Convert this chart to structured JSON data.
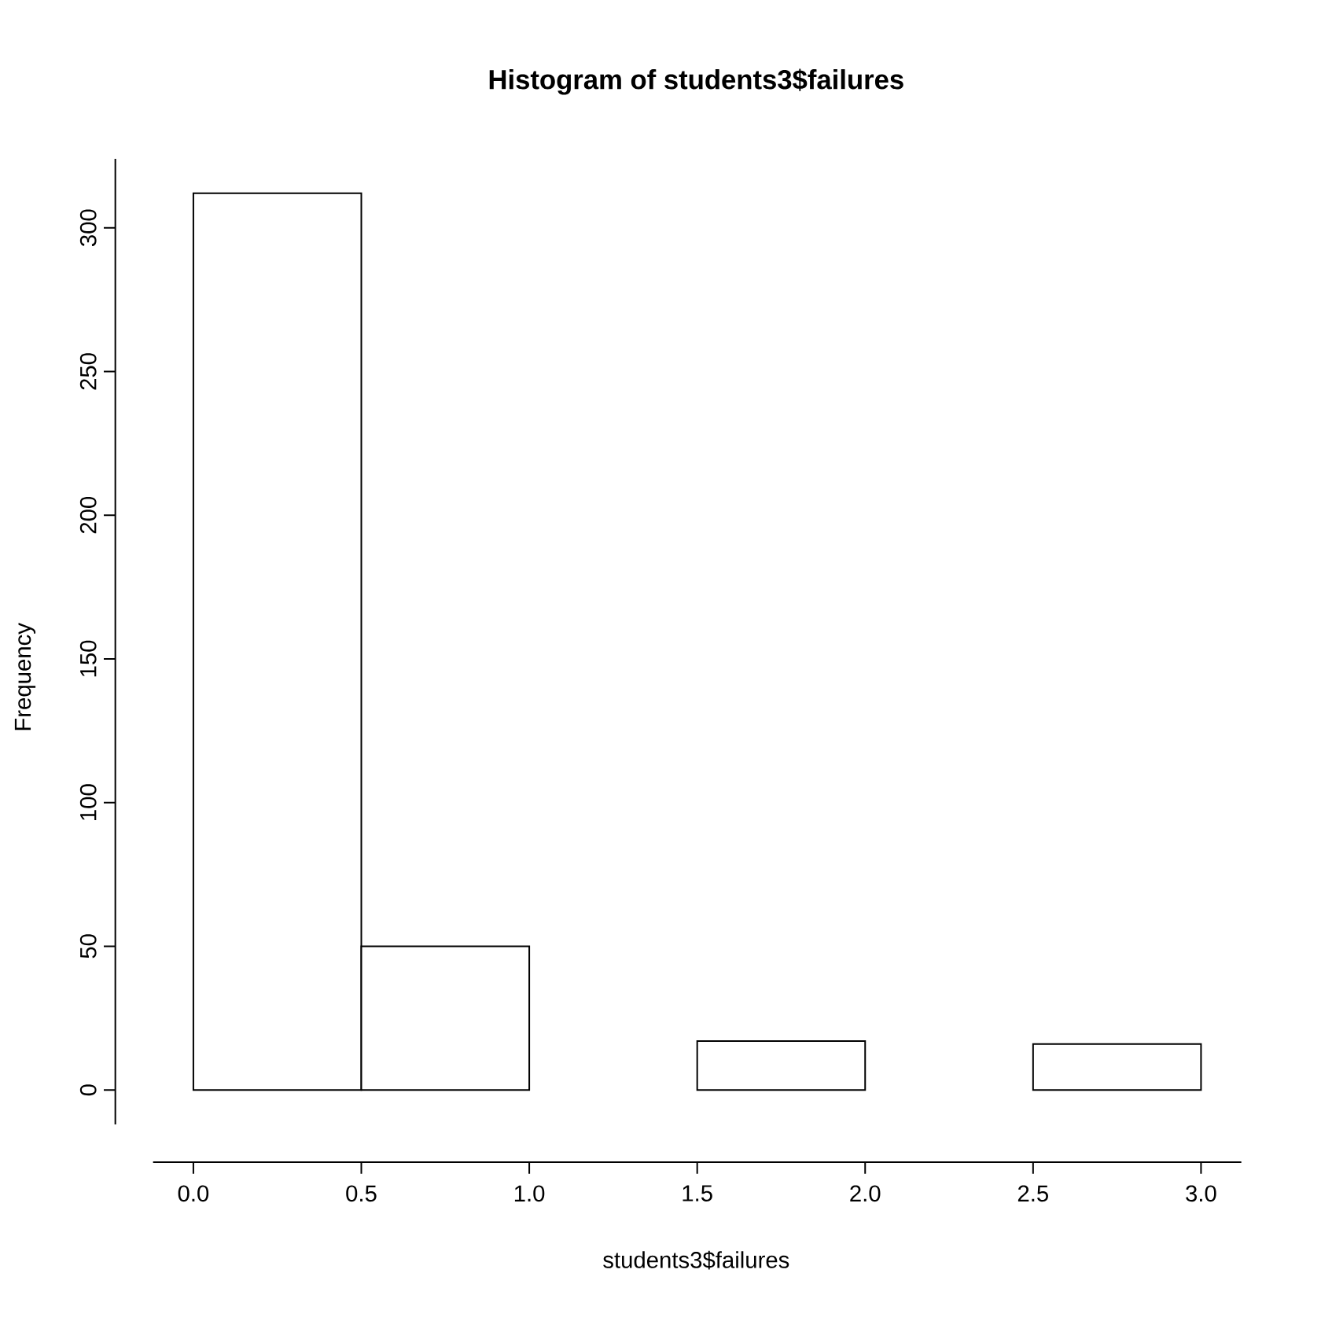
{
  "chart_data": {
    "type": "histogram",
    "title": "Histogram of students3$failures",
    "xlabel": "students3$failures",
    "ylabel": "Frequency",
    "bins": [
      0,
      0.5,
      1,
      1.5,
      2,
      2.5,
      3
    ],
    "values": [
      312,
      50,
      0,
      17,
      0,
      16
    ],
    "color": "#ffffff",
    "xlim": [
      -0.12,
      3.12
    ],
    "ylim": [
      -12,
      324
    ],
    "xticks": [
      {
        "value": 0,
        "label": "0.0"
      },
      {
        "value": 0.5,
        "label": "0.5"
      },
      {
        "value": 1,
        "label": "1.0"
      },
      {
        "value": 1.5,
        "label": "1.5"
      },
      {
        "value": 2,
        "label": "2.0"
      },
      {
        "value": 2.5,
        "label": "2.5"
      },
      {
        "value": 3,
        "label": "3.0"
      }
    ],
    "yticks": [
      0,
      50,
      100,
      150,
      200,
      250,
      300
    ],
    "grid": false
  }
}
